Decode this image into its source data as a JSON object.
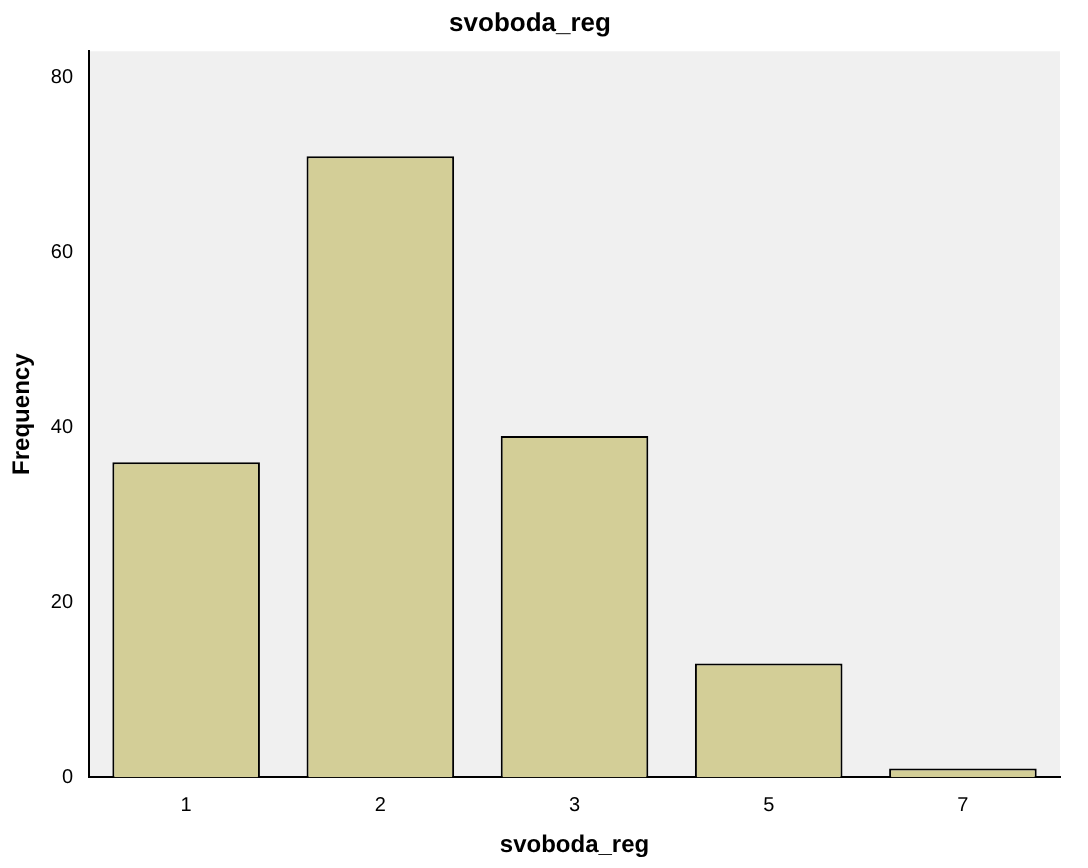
{
  "chart_data": {
    "type": "bar",
    "title": "svoboda_reg",
    "xlabel": "svoboda_reg",
    "ylabel": "Frequency",
    "categories": [
      "1",
      "2",
      "3",
      "5",
      "7"
    ],
    "values": [
      36,
      71,
      39,
      13,
      1
    ],
    "color": "#d3ce97",
    "ylim": [
      0,
      83
    ],
    "yticks": [
      0,
      20,
      40,
      60,
      80
    ],
    "grid": false,
    "legend": false
  }
}
